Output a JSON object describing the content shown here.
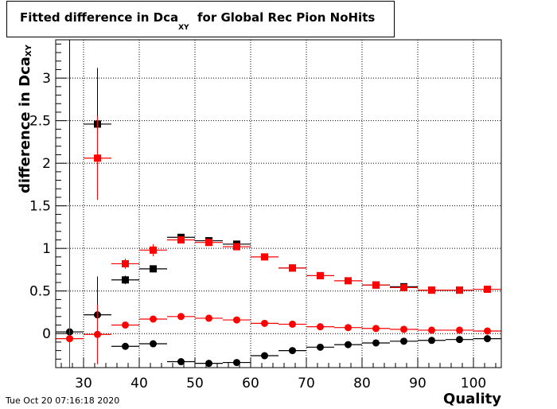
{
  "title": {
    "main": "Fitted difference in Dca",
    "sub": "XY",
    "rest": "for Global Rec Pion NoHits"
  },
  "timestamp": "Tue Oct 20 07:16:18 2020",
  "colors": {
    "series_a": "#000000",
    "series_b": "#ff0000"
  },
  "chart_data": {
    "type": "scatter",
    "title": "Fitted difference in Dca_XY for Global Rec Pion NoHits",
    "xlabel": "Quality",
    "ylabel_main": "difference in Dca",
    "ylabel_sub": "XY",
    "xlim": [
      25,
      105
    ],
    "ylim": [
      -0.4,
      3.45
    ],
    "xticks": [
      30,
      40,
      50,
      60,
      70,
      80,
      90,
      100
    ],
    "yticks": [
      0,
      0.5,
      1,
      1.5,
      2,
      2.5,
      3
    ],
    "grid": true,
    "x": [
      27.5,
      32.5,
      37.5,
      42.5,
      47.5,
      52.5,
      57.5,
      62.5,
      67.5,
      72.5,
      77.5,
      82.5,
      87.5,
      92.5,
      97.5,
      102.5
    ],
    "series": [
      {
        "color": "#000000",
        "marker": "square",
        "values": [
          null,
          2.46,
          0.63,
          0.76,
          1.13,
          1.09,
          1.05,
          null,
          0.77,
          0.68,
          null,
          0.57,
          0.55,
          0.51,
          0.51,
          null
        ],
        "errors": [
          null,
          0.66,
          0.05,
          0.04,
          0.04,
          0.03,
          0.03,
          null,
          0.03,
          0.02,
          null,
          0.02,
          0.02,
          0.02,
          0.02,
          null
        ]
      },
      {
        "color": "#ff0000",
        "marker": "square",
        "values": [
          null,
          2.06,
          0.82,
          0.98,
          1.1,
          1.07,
          1.02,
          0.9,
          0.77,
          0.68,
          0.62,
          0.57,
          0.54,
          0.51,
          0.51,
          0.52
        ],
        "errors": [
          null,
          0.49,
          0.06,
          0.07,
          0.03,
          0.03,
          0.03,
          0.02,
          0.02,
          0.02,
          0.02,
          0.02,
          0.02,
          0.02,
          0.02,
          0.02
        ]
      },
      {
        "color": "#000000",
        "marker": "circle",
        "values": [
          0.02,
          0.22,
          -0.15,
          -0.12,
          -0.33,
          -0.35,
          -0.34,
          -0.26,
          -0.2,
          -0.16,
          -0.13,
          -0.11,
          -0.09,
          -0.08,
          -0.07,
          -0.06
        ],
        "errors": [
          3.45,
          0.45,
          0.03,
          0.02,
          0.02,
          0.02,
          0.02,
          0.02,
          0.02,
          0.02,
          0.02,
          0.02,
          0.02,
          0.02,
          0.02,
          0.02
        ]
      },
      {
        "color": "#ff0000",
        "marker": "circle",
        "values": [
          -0.06,
          -0.01,
          0.1,
          0.17,
          0.2,
          0.18,
          0.16,
          0.12,
          0.11,
          0.08,
          0.07,
          0.06,
          0.05,
          0.04,
          0.04,
          0.03
        ],
        "errors": [
          1.6,
          0.35,
          0.03,
          0.02,
          0.02,
          0.02,
          0.02,
          0.02,
          0.02,
          0.02,
          0.02,
          0.02,
          0.02,
          0.02,
          0.02,
          0.02
        ]
      }
    ]
  }
}
